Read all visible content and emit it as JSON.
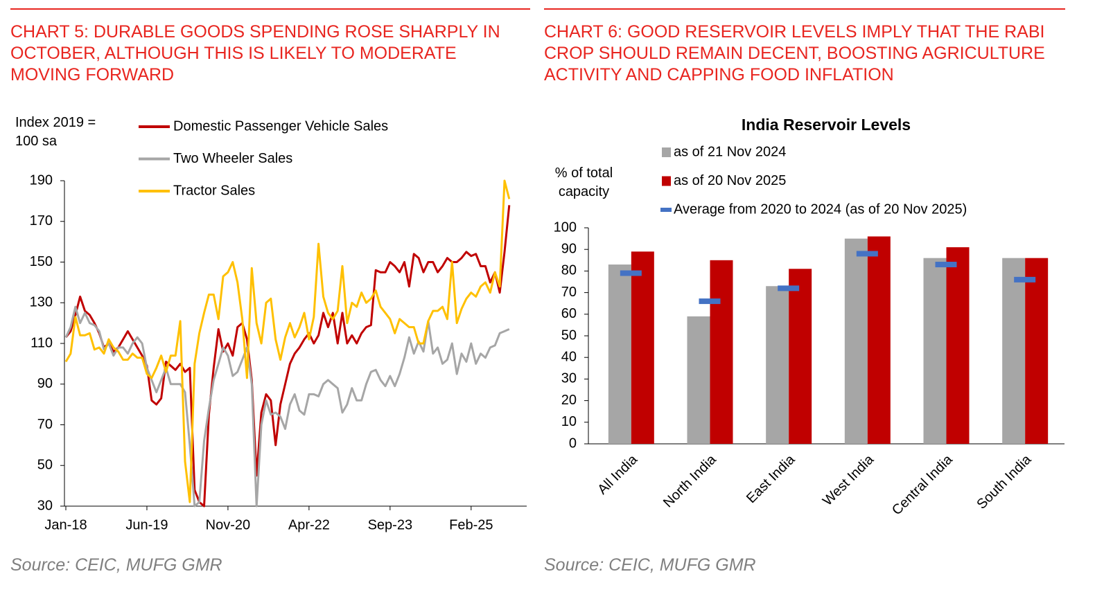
{
  "chart_data": [
    {
      "type": "line",
      "heading": "CHART 5: DURABLE GOODS SPENDING ROSE SHARPLY IN OCTOBER, ALTHOUGH THIS IS LIKELY TO MODERATE MOVING FORWARD",
      "y_label": "Index 2019 = 100 sa",
      "source": "Source: CEIC, MUFG GMR",
      "categories": [
        "Jan-18",
        null,
        null,
        null,
        null,
        null,
        null,
        null,
        null,
        null,
        null,
        null,
        null,
        null,
        null,
        null,
        null,
        "Jun-19",
        null,
        null,
        null,
        null,
        null,
        null,
        null,
        null,
        null,
        null,
        null,
        null,
        null,
        null,
        null,
        null,
        "Nov-20",
        null,
        null,
        null,
        null,
        null,
        null,
        null,
        null,
        null,
        null,
        null,
        null,
        null,
        null,
        null,
        null,
        "Apr-22",
        null,
        null,
        null,
        null,
        null,
        null,
        null,
        null,
        null,
        null,
        null,
        null,
        null,
        null,
        null,
        null,
        "Sep-23",
        null,
        null,
        null,
        null,
        null,
        null,
        null,
        null,
        null,
        null,
        null,
        null,
        null,
        null,
        null,
        null,
        "Feb-25",
        null,
        null,
        null,
        null,
        null,
        null,
        null,
        null
      ],
      "ylim": [
        30,
        190
      ],
      "yticks": [
        30,
        50,
        70,
        90,
        110,
        130,
        150,
        170,
        190
      ],
      "grid": false,
      "series": [
        {
          "name": "Domestic Passenger Vehicle Sales",
          "color": "#c00000",
          "values": [
            113,
            116,
            124,
            133,
            126,
            124,
            120,
            115,
            108,
            110,
            106,
            108,
            112,
            116,
            112,
            108,
            104,
            99,
            82,
            80,
            83,
            101,
            99,
            97,
            100,
            96,
            98,
            38,
            32,
            30,
            75,
            98,
            117,
            106,
            110,
            104,
            118,
            120,
            112,
            92,
            45,
            76,
            85,
            82,
            60,
            80,
            90,
            100,
            105,
            108,
            112,
            115,
            110,
            114,
            125,
            118,
            125,
            110,
            125,
            110,
            114,
            110,
            115,
            118,
            119,
            146,
            145,
            145,
            150,
            148,
            145,
            150,
            138,
            154,
            152,
            145,
            150,
            150,
            145,
            148,
            152,
            150,
            150,
            152,
            155,
            153,
            154,
            148,
            148,
            140,
            145,
            135,
            155,
            178
          ]
        },
        {
          "name": "Two Wheeler Sales",
          "color": "#a6a6a6",
          "values": [
            113,
            118,
            128,
            120,
            125,
            120,
            119,
            116,
            107,
            110,
            104,
            108,
            108,
            105,
            110,
            113,
            110,
            98,
            92,
            86,
            92,
            98,
            90,
            90,
            90,
            86,
            60,
            30,
            32,
            62,
            78,
            92,
            100,
            108,
            104,
            94,
            96,
            102,
            108,
            90,
            30,
            70,
            82,
            75,
            76,
            74,
            68,
            80,
            85,
            77,
            75,
            85,
            85,
            84,
            90,
            92,
            90,
            88,
            76,
            80,
            88,
            82,
            82,
            90,
            96,
            97,
            92,
            89,
            94,
            89,
            95,
            103,
            113,
            105,
            111,
            106,
            121,
            105,
            108,
            100,
            102,
            110,
            95,
            105,
            101,
            110,
            100,
            105,
            103,
            108,
            109,
            115,
            116,
            117
          ]
        },
        {
          "name": "Tractor Sales",
          "color": "#ffc000",
          "values": [
            101,
            105,
            123,
            114,
            114,
            115,
            107,
            108,
            105,
            112,
            108,
            106,
            102,
            102,
            105,
            103,
            103,
            95,
            93,
            98,
            104,
            96,
            104,
            104,
            121,
            52,
            32,
            100,
            115,
            125,
            134,
            134,
            122,
            143,
            145,
            150,
            140,
            122,
            93,
            147,
            120,
            110,
            130,
            132,
            112,
            102,
            113,
            120,
            113,
            118,
            125,
            112,
            123,
            159,
            133,
            125,
            122,
            126,
            148,
            120,
            130,
            128,
            135,
            130,
            132,
            136,
            128,
            125,
            122,
            115,
            122,
            120,
            118,
            118,
            110,
            110,
            121,
            126,
            126,
            128,
            122,
            150,
            120,
            127,
            132,
            135,
            133,
            138,
            140,
            135,
            145,
            138,
            190,
            181
          ]
        }
      ]
    },
    {
      "type": "bar",
      "heading": "CHART 6: GOOD RESERVOIR LEVELS IMPLY THAT THE RABI CROP SHOULD REMAIN DECENT, BOOSTING AGRICULTURE ACTIVITY AND CAPPING FOOD INFLATION",
      "title": "India Reservoir Levels",
      "y_label": "% of total capacity",
      "source": "Source: CEIC, MUFG GMR",
      "categories": [
        "All India",
        "North India",
        "East India",
        "West India",
        "Central India",
        "South India"
      ],
      "ylim": [
        0,
        100
      ],
      "yticks": [
        0,
        10,
        20,
        30,
        40,
        50,
        60,
        70,
        80,
        90,
        100
      ],
      "grid": false,
      "series": [
        {
          "name": "as of 21 Nov 2024",
          "color": "#a6a6a6",
          "values": [
            83,
            59,
            73,
            95,
            86,
            86
          ]
        },
        {
          "name": "as of 20 Nov 2025",
          "color": "#c00000",
          "values": [
            89,
            85,
            81,
            96,
            91,
            86
          ]
        },
        {
          "name": "Average from 2020 to 2024 (as of 20 Nov 2025)",
          "color": "#4472c4",
          "marker": "dash",
          "values": [
            79,
            66,
            72,
            88,
            83,
            76
          ]
        }
      ]
    }
  ]
}
